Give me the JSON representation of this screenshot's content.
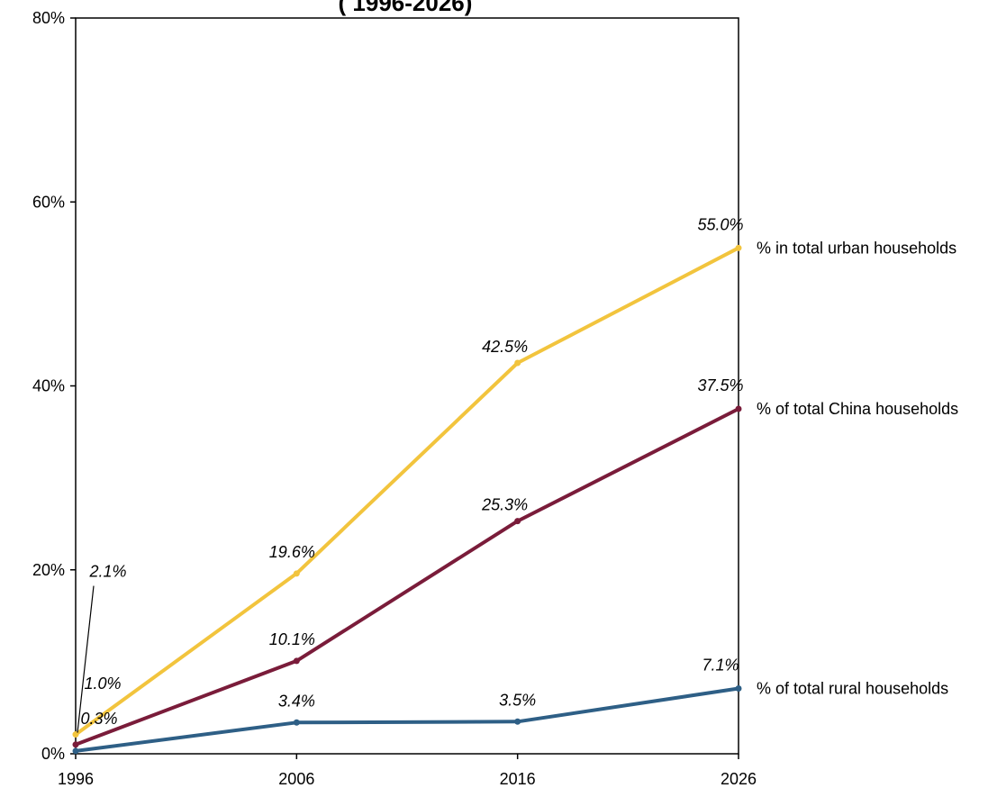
{
  "chart_data": {
    "type": "line",
    "title": "( 1996-2026)",
    "xlabel": "",
    "ylabel": "",
    "x": [
      1996,
      2006,
      2016,
      2026
    ],
    "x_tick_labels": [
      "1996",
      "2006",
      "2016",
      "2026"
    ],
    "ylim": [
      0,
      80
    ],
    "y_ticks": [
      0,
      20,
      40,
      60,
      80
    ],
    "y_tick_labels": [
      "0%",
      "20%",
      "40%",
      "60%",
      "80%"
    ],
    "grid": false,
    "legend": "right, labels at line ends",
    "series": [
      {
        "name": "% in total urban households",
        "color": "#f2c43d",
        "values": [
          2.1,
          19.6,
          42.5,
          55.0
        ],
        "data_labels": [
          "2.1%",
          "19.6%",
          "42.5%",
          "55.0%"
        ]
      },
      {
        "name": "% of total  China households",
        "color": "#7a1c3a",
        "values": [
          1.0,
          10.1,
          25.3,
          37.5
        ],
        "data_labels": [
          "1.0%",
          "10.1%",
          "25.3%",
          "37.5%"
        ]
      },
      {
        "name": "% of total rural households",
        "color": "#2e5f86",
        "values": [
          0.3,
          3.4,
          3.5,
          7.1
        ],
        "data_labels": [
          "0.3%",
          "3.4%",
          "3.5%",
          "7.1%"
        ]
      }
    ]
  }
}
